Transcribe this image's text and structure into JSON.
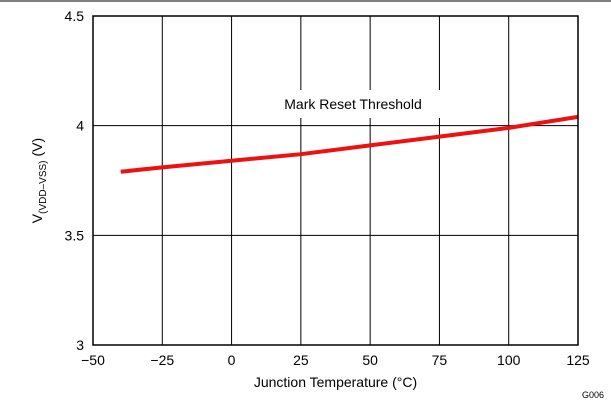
{
  "chart_data": {
    "type": "line",
    "xlabel": "Junction Temperature (°C)",
    "ylabel": {
      "main": "V",
      "subscript": "(VDD–VSS)",
      "unit": "(V)"
    },
    "xlim": [
      -50,
      125
    ],
    "ylim": [
      3,
      4.5
    ],
    "x_ticks": [
      -50,
      -25,
      0,
      25,
      50,
      75,
      100,
      125
    ],
    "x_tick_labels": [
      "−50",
      "−25",
      "0",
      "25",
      "50",
      "75",
      "100",
      "125"
    ],
    "y_ticks": [
      3,
      3.5,
      4,
      4.5
    ],
    "y_tick_labels": [
      "3",
      "3.5",
      "4",
      "4.5"
    ],
    "grid": true,
    "series": [
      {
        "name": "",
        "color": "#ee1111",
        "x": [
          -40,
          -25,
          0,
          25,
          50,
          75,
          100,
          125
        ],
        "y": [
          3.79,
          3.81,
          3.84,
          3.87,
          3.91,
          3.95,
          3.99,
          4.04
        ]
      }
    ],
    "annotation": "Mark Reset Threshold",
    "figure_id": "G006"
  }
}
